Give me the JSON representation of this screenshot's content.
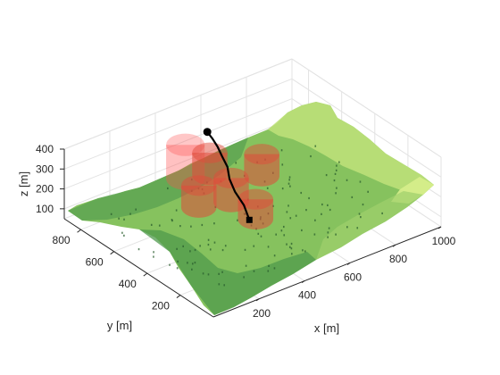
{
  "chart_data": {
    "type": "surface3d",
    "title": "",
    "xlabel": "x [m]",
    "ylabel": "y [m]",
    "zlabel": "z [m]",
    "xlim": [
      0,
      1000
    ],
    "ylim": [
      0,
      900
    ],
    "zlim": [
      50,
      400
    ],
    "x_ticks": [
      200,
      400,
      600,
      800,
      1000
    ],
    "y_ticks": [
      200,
      400,
      600,
      800
    ],
    "z_ticks": [
      100,
      200,
      300,
      400
    ],
    "grid": true,
    "colormap": [
      "#2e7d3e",
      "#5fae4e",
      "#9fd36a",
      "#d8ee8a"
    ],
    "obstacles": [
      {
        "x": 350,
        "y": 650,
        "r": 60,
        "z_base": 230,
        "z_top": 400,
        "color": "#ff4d4d",
        "alpha": 0.35
      },
      {
        "x": 450,
        "y": 640,
        "r": 55,
        "z_base": 210,
        "z_top": 320,
        "color": "#e04a3a",
        "alpha": 0.55
      },
      {
        "x": 420,
        "y": 470,
        "r": 55,
        "z_base": 180,
        "z_top": 300,
        "color": "#e04a3a",
        "alpha": 0.55
      },
      {
        "x": 300,
        "y": 500,
        "r": 55,
        "z_base": 190,
        "z_top": 300,
        "color": "#e04a3a",
        "alpha": 0.55
      },
      {
        "x": 620,
        "y": 560,
        "r": 55,
        "z_base": 170,
        "z_top": 280,
        "color": "#e04a3a",
        "alpha": 0.55
      },
      {
        "x": 440,
        "y": 350,
        "r": 55,
        "z_base": 150,
        "z_top": 250,
        "color": "#e04a3a",
        "alpha": 0.55
      }
    ],
    "path": {
      "start_marker": "square",
      "end_marker": "circle",
      "color": "#000000",
      "points": [
        [
          420,
          360,
          150
        ],
        [
          425,
          400,
          200
        ],
        [
          415,
          440,
          250
        ],
        [
          420,
          480,
          290
        ],
        [
          440,
          520,
          320
        ],
        [
          445,
          560,
          350
        ],
        [
          455,
          600,
          370
        ],
        [
          462,
          640,
          385
        ],
        [
          468,
          680,
          395
        ]
      ]
    }
  }
}
